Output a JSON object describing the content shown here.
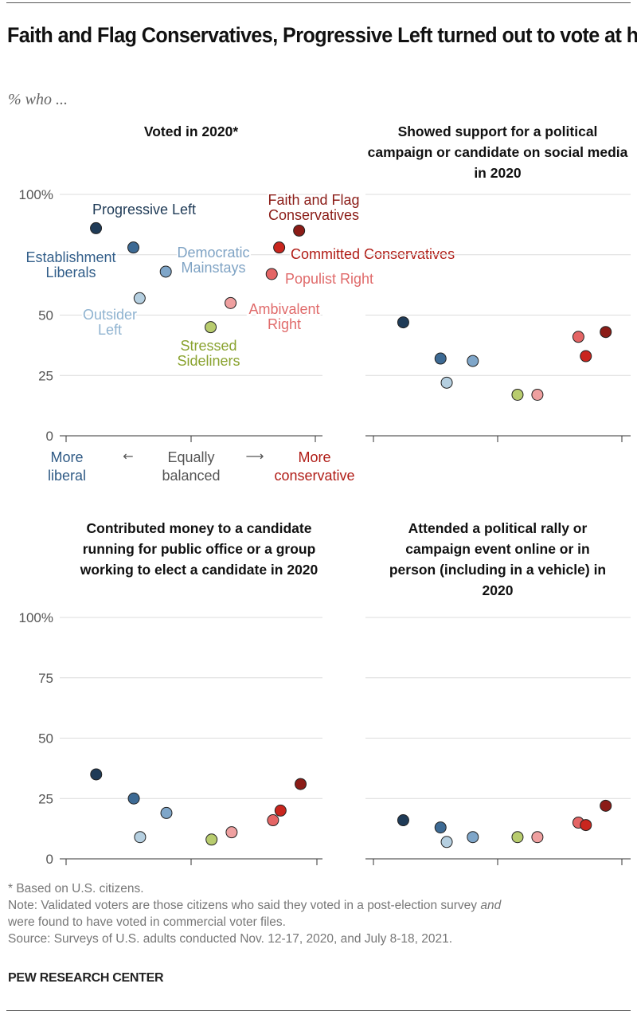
{
  "title": "Faith and Flag Conservatives, Progressive Left turned out to vote at higher rates than other typology groups",
  "subtitle": "% who ...",
  "x_axis": {
    "left_label": [
      "More",
      "liberal"
    ],
    "center_label": [
      "Equally",
      "balanced"
    ],
    "right_label": [
      "More",
      "conservative"
    ],
    "left_arrow": "←",
    "right_arrow": "⟶"
  },
  "groups": [
    {
      "name": [
        "Progressive Left"
      ],
      "color": "#1f3b57",
      "text_color": "#1e3a56"
    },
    {
      "name": [
        "Establishment",
        "Liberals"
      ],
      "color": "#3d6a94",
      "text_color": "#335f8a"
    },
    {
      "name": [
        "Democratic",
        "Mainstays"
      ],
      "color": "#7fa6c9",
      "text_color": "#7fa3c4"
    },
    {
      "name": [
        "Outsider",
        "Left"
      ],
      "color": "#b5cfe0",
      "text_color": "#8fb3d0"
    },
    {
      "name": [
        "Stressed",
        "Sideliners"
      ],
      "color": "#b8cc6e",
      "text_color": "#8aa330"
    },
    {
      "name": [
        "Ambivalent",
        "Right"
      ],
      "color": "#efa0a0",
      "text_color": "#e06b6b"
    },
    {
      "name": [
        "Populist Right"
      ],
      "color": "#e46565",
      "text_color": "#e06b6b"
    },
    {
      "name": [
        "Committed Conservatives"
      ],
      "color": "#c9261e",
      "text_color": "#b01c16"
    },
    {
      "name": [
        "Faith and Flag",
        "Conservatives"
      ],
      "color": "#8b1c17",
      "text_color": "#8b1c17"
    }
  ],
  "chart_data": [
    {
      "type": "scatter",
      "title": "Voted in 2020*",
      "ylim": [
        0,
        100
      ],
      "yticks": [
        "0",
        "25",
        "50",
        "",
        "100%"
      ],
      "xlim": [
        -1,
        1
      ],
      "grid": true,
      "x": [
        -0.76,
        -0.46,
        -0.2,
        -0.41,
        0.16,
        0.32,
        0.65,
        0.71,
        0.87
      ],
      "y": [
        86,
        78,
        68,
        57,
        45,
        55,
        67,
        78,
        85
      ]
    },
    {
      "type": "scatter",
      "title": "Showed support for a political campaign or candidate on social media in 2020",
      "ylim": [
        0,
        100
      ],
      "yticks": [],
      "xlim": [
        -1,
        1
      ],
      "grid": true,
      "x": [
        -0.76,
        -0.46,
        -0.2,
        -0.41,
        0.16,
        0.32,
        0.65,
        0.71,
        0.87
      ],
      "y": [
        47,
        32,
        31,
        22,
        17,
        17,
        41,
        33,
        43
      ]
    },
    {
      "type": "scatter",
      "title": "Contributed money to a candidate running for public office or a group working to elect a candidate in 2020",
      "ylim": [
        0,
        100
      ],
      "yticks": [
        "0",
        "25",
        "50",
        "75",
        "100%"
      ],
      "xlim": [
        -1,
        1
      ],
      "grid": true,
      "x": [
        -0.76,
        -0.46,
        -0.2,
        -0.41,
        0.16,
        0.32,
        0.65,
        0.71,
        0.87
      ],
      "y": [
        35,
        25,
        19,
        9,
        8,
        11,
        16,
        20,
        31
      ]
    },
    {
      "type": "scatter",
      "title": "Attended a political rally or campaign event online or in person (including in a vehicle) in 2020",
      "ylim": [
        0,
        100
      ],
      "yticks": [],
      "xlim": [
        -1,
        1
      ],
      "grid": true,
      "x": [
        -0.76,
        -0.46,
        -0.2,
        -0.41,
        0.16,
        0.32,
        0.65,
        0.71,
        0.87
      ],
      "y": [
        16,
        13,
        9,
        7,
        9,
        9,
        15,
        14,
        22
      ]
    }
  ],
  "footer": {
    "footnote": "* Based on U.S. citizens.",
    "note_1": "Note: Validated voters are those citizens who said they voted in a post-election survey ",
    "note_em": "and",
    "note_2": "were found to have voted in commercial voter files.",
    "source": "Source: Surveys of U.S. adults conducted Nov. 12-17, 2020, and July 8-18, 2021."
  },
  "brand": "PEW RESEARCH CENTER"
}
